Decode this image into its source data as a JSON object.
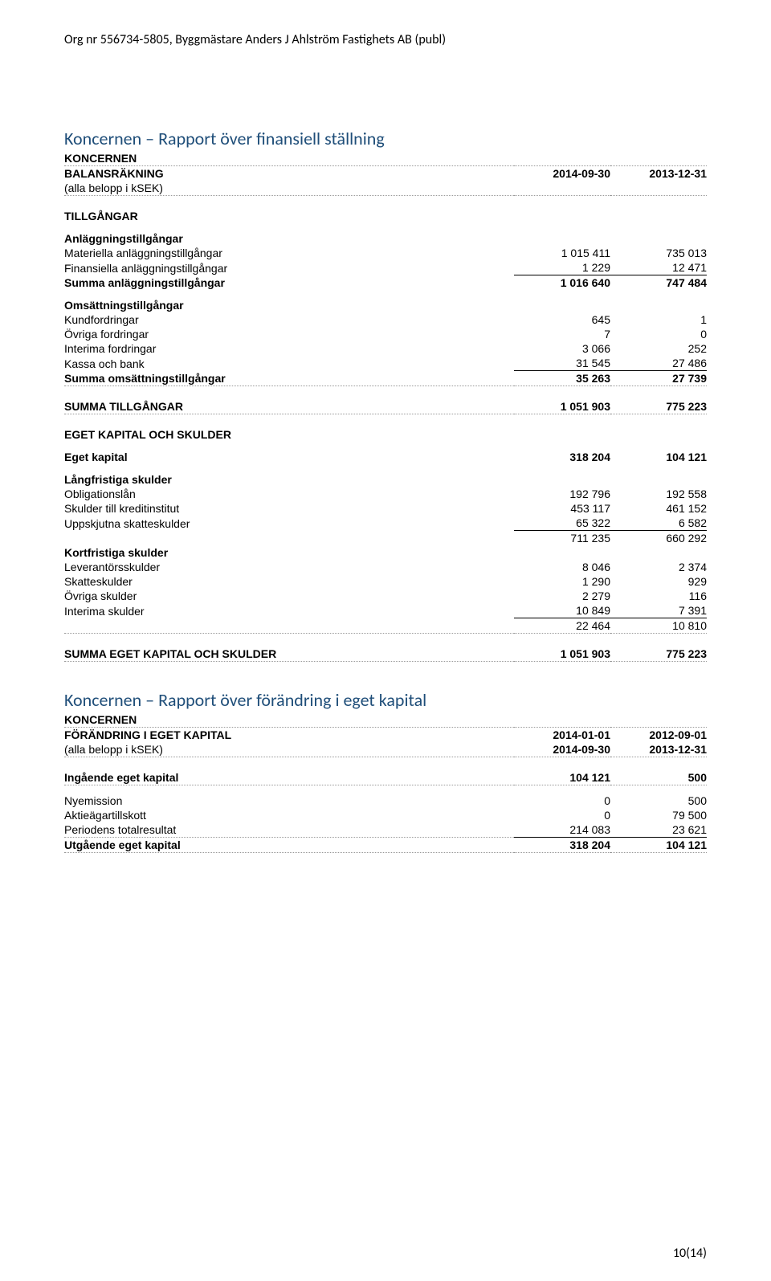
{
  "header": {
    "org_line": "Org nr 556734-5805, Byggmästare Anders J Ahlström Fastighets AB (publ)"
  },
  "balance": {
    "title": "Koncernen – Rapport över finansiell ställning",
    "sub1": "KONCERNEN",
    "sub2": "BALANSRÄKNING",
    "note": "(alla belopp i kSEK)",
    "col1": "2014-09-30",
    "col2": "2013-12-31",
    "tillgangar": "TILLGÅNGAR",
    "anl_header": "Anläggningstillgångar",
    "anl_rows": [
      {
        "label": "Materiella anläggningstillgångar",
        "v1": "1 015 411",
        "v2": "735 013"
      },
      {
        "label": "Finansiella anläggningstillgångar",
        "v1": "1 229",
        "v2": "12 471"
      }
    ],
    "anl_sum": {
      "label": "Summa anläggningstillgångar",
      "v1": "1 016 640",
      "v2": "747 484"
    },
    "oms_header": "Omsättningstillgångar",
    "oms_rows": [
      {
        "label": "Kundfordringar",
        "v1": "645",
        "v2": "1"
      },
      {
        "label": "Övriga fordringar",
        "v1": "7",
        "v2": "0"
      },
      {
        "label": "Interima fordringar",
        "v1": "3 066",
        "v2": "252"
      },
      {
        "label": "Kassa och bank",
        "v1": "31 545",
        "v2": "27 486"
      }
    ],
    "oms_sum": {
      "label": "Summa omsättningstillgångar",
      "v1": "35 263",
      "v2": "27 739"
    },
    "summa_tillgangar": {
      "label": "SUMMA TILLGÅNGAR",
      "v1": "1 051 903",
      "v2": "775 223"
    },
    "ek_skulder": "EGET KAPITAL OCH SKULDER",
    "eget_kapital": {
      "label": "Eget kapital",
      "v1": "318 204",
      "v2": "104 121"
    },
    "lang_header": "Långfristiga skulder",
    "lang_rows": [
      {
        "label": "Obligationslån",
        "v1": "192 796",
        "v2": "192 558"
      },
      {
        "label": "Skulder till kreditinstitut",
        "v1": "453 117",
        "v2": "461 152"
      },
      {
        "label": "Uppskjutna skatteskulder",
        "v1": "65 322",
        "v2": "6 582"
      }
    ],
    "lang_sum": {
      "label": "",
      "v1": "711 235",
      "v2": "660 292"
    },
    "kort_header": "Kortfristiga skulder",
    "kort_rows": [
      {
        "label": "Leverantörsskulder",
        "v1": "8 046",
        "v2": "2 374"
      },
      {
        "label": "Skatteskulder",
        "v1": "1 290",
        "v2": "929"
      },
      {
        "label": "Övriga skulder",
        "v1": "2 279",
        "v2": "116"
      },
      {
        "label": "Interima skulder",
        "v1": "10 849",
        "v2": "7 391"
      }
    ],
    "kort_sum": {
      "label": "",
      "v1": "22 464",
      "v2": "10 810"
    },
    "summa_ek": {
      "label": "SUMMA EGET KAPITAL OCH SKULDER",
      "v1": "1 051 903",
      "v2": "775 223"
    }
  },
  "equity": {
    "title": "Koncernen – Rapport över förändring i eget kapital",
    "sub1": "KONCERNEN",
    "sub2": "FÖRÄNDRING I EGET KAPITAL",
    "note": "(alla belopp i kSEK)",
    "h1a": "2014-01-01",
    "h1b": "2014-09-30",
    "h2a": "2012-09-01",
    "h2b": "2013-12-31",
    "ingaende": {
      "label": "Ingående eget kapital",
      "v1": "104 121",
      "v2": "500"
    },
    "rows": [
      {
        "label": "Nyemission",
        "v1": "0",
        "v2": "500"
      },
      {
        "label": "Aktieägartillskott",
        "v1": "0",
        "v2": "79 500"
      },
      {
        "label": "Periodens totalresultat",
        "v1": "214 083",
        "v2": "23 621"
      }
    ],
    "utgaende": {
      "label": "Utgående eget kapital",
      "v1": "318 204",
      "v2": "104 121"
    }
  },
  "footer": {
    "page": "10(14)"
  }
}
